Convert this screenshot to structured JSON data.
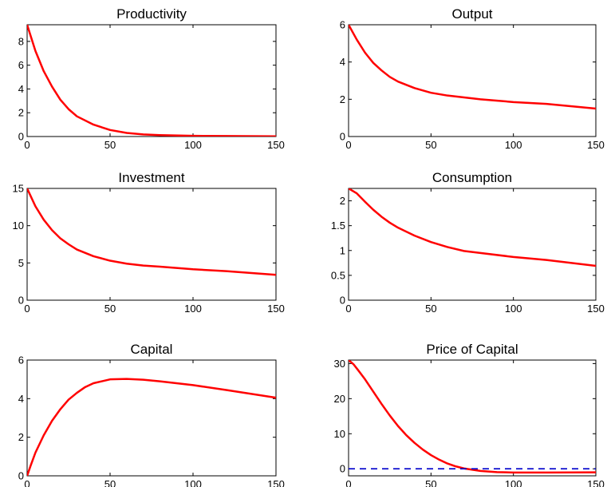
{
  "chart_data": [
    {
      "type": "line",
      "title": "Productivity",
      "xlim": [
        0,
        150
      ],
      "ylim": [
        0,
        9.4
      ],
      "xticks": [
        0,
        50,
        100,
        150
      ],
      "yticks": [
        0,
        2,
        4,
        6,
        8
      ],
      "series": [
        {
          "color": "#ff0000",
          "x": [
            0,
            5,
            10,
            15,
            20,
            25,
            30,
            40,
            50,
            60,
            70,
            80,
            100,
            120,
            150
          ],
          "y": [
            9.4,
            7.2,
            5.5,
            4.2,
            3.1,
            2.3,
            1.7,
            1.0,
            0.55,
            0.3,
            0.18,
            0.12,
            0.06,
            0.04,
            0.02
          ]
        }
      ]
    },
    {
      "type": "line",
      "title": "Output",
      "xlim": [
        0,
        150
      ],
      "ylim": [
        0,
        6
      ],
      "xticks": [
        0,
        50,
        100,
        150
      ],
      "yticks": [
        0,
        2,
        4,
        6
      ],
      "series": [
        {
          "color": "#ff0000",
          "x": [
            0,
            5,
            10,
            15,
            20,
            25,
            30,
            40,
            50,
            60,
            70,
            80,
            100,
            120,
            150
          ],
          "y": [
            6.0,
            5.2,
            4.5,
            3.95,
            3.55,
            3.2,
            2.95,
            2.6,
            2.35,
            2.2,
            2.1,
            2.0,
            1.85,
            1.75,
            1.5
          ]
        }
      ]
    },
    {
      "type": "line",
      "title": "Investment",
      "xlim": [
        0,
        150
      ],
      "ylim": [
        0,
        15
      ],
      "xticks": [
        0,
        50,
        100,
        150
      ],
      "yticks": [
        0,
        5,
        10,
        15
      ],
      "series": [
        {
          "color": "#ff0000",
          "x": [
            0,
            5,
            10,
            15,
            20,
            25,
            30,
            40,
            50,
            60,
            70,
            80,
            100,
            120,
            150
          ],
          "y": [
            15.0,
            12.6,
            10.8,
            9.4,
            8.3,
            7.5,
            6.8,
            5.9,
            5.3,
            4.9,
            4.65,
            4.5,
            4.15,
            3.9,
            3.4
          ]
        }
      ]
    },
    {
      "type": "line",
      "title": "Consumption",
      "xlim": [
        0,
        150
      ],
      "ylim": [
        0,
        2.25
      ],
      "xticks": [
        0,
        50,
        100,
        150
      ],
      "yticks": [
        0,
        0.5,
        1,
        1.5,
        2
      ],
      "series": [
        {
          "color": "#ff0000",
          "x": [
            0,
            5,
            10,
            15,
            20,
            25,
            30,
            40,
            50,
            60,
            70,
            80,
            100,
            120,
            150
          ],
          "y": [
            2.25,
            2.15,
            1.98,
            1.82,
            1.68,
            1.56,
            1.46,
            1.3,
            1.17,
            1.07,
            0.99,
            0.95,
            0.87,
            0.81,
            0.69
          ]
        }
      ]
    },
    {
      "type": "line",
      "title": "Capital",
      "xlim": [
        0,
        150
      ],
      "ylim": [
        0,
        6
      ],
      "xticks": [
        0,
        50,
        100,
        150
      ],
      "yticks": [
        0,
        2,
        4,
        6
      ],
      "series": [
        {
          "color": "#ff0000",
          "x": [
            0,
            2,
            5,
            10,
            15,
            20,
            25,
            30,
            35,
            40,
            50,
            60,
            70,
            80,
            100,
            120,
            150
          ],
          "y": [
            0,
            0.5,
            1.2,
            2.1,
            2.85,
            3.45,
            3.95,
            4.3,
            4.6,
            4.8,
            5.0,
            5.02,
            4.98,
            4.9,
            4.7,
            4.45,
            4.05
          ]
        }
      ]
    },
    {
      "type": "line",
      "title": "Price of Capital",
      "xlim": [
        0,
        150
      ],
      "ylim": [
        -2,
        31
      ],
      "xticks": [
        0,
        50,
        100,
        150
      ],
      "yticks": [
        0,
        10,
        20,
        30
      ],
      "series": [
        {
          "color": "#ff0000",
          "x": [
            0,
            3,
            6,
            10,
            15,
            20,
            25,
            30,
            35,
            40,
            45,
            50,
            55,
            60,
            65,
            70,
            80,
            90,
            100,
            120,
            150
          ],
          "y": [
            31,
            29.8,
            28,
            25.5,
            22,
            18.5,
            15.2,
            12.2,
            9.6,
            7.4,
            5.5,
            3.9,
            2.6,
            1.5,
            0.7,
            0.1,
            -0.6,
            -0.95,
            -1.05,
            -1.05,
            -1.0
          ]
        },
        {
          "color": "#0000cc",
          "style": "dashed",
          "x": [
            0,
            150
          ],
          "y": [
            0,
            0
          ]
        }
      ]
    }
  ]
}
